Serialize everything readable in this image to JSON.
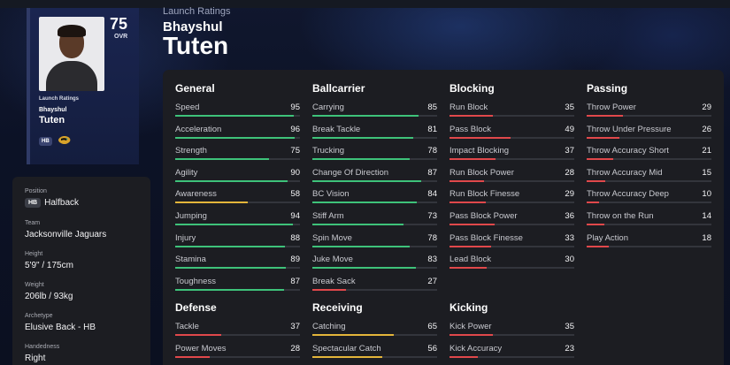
{
  "colors": {
    "high": "#3ec27a",
    "mid": "#e3b53a",
    "low": "#e0484b"
  },
  "card": {
    "ovr": "75",
    "ovr_label": "OVR",
    "launch_label": "Launch Ratings",
    "first_name": "Bhayshul",
    "last_name": "Tuten",
    "position": "HB"
  },
  "header": {
    "launch_label": "Launch Ratings",
    "first_name": "Bhayshul",
    "last_name": "Tuten"
  },
  "info": {
    "position_label": "Position",
    "position_badge": "HB",
    "position_value": "Halfback",
    "team_label": "Team",
    "team_value": "Jacksonville Jaguars",
    "height_label": "Height",
    "height_value": "5'9\" / 175cm",
    "weight_label": "Weight",
    "weight_value": "206lb / 93kg",
    "archetype_label": "Archetype",
    "archetype_value": "Elusive Back - HB",
    "handedness_label": "Handedness",
    "handedness_value": "Right"
  },
  "groups": [
    {
      "title": "General",
      "ratings": [
        {
          "name": "Speed",
          "value": 95
        },
        {
          "name": "Acceleration",
          "value": 96
        },
        {
          "name": "Strength",
          "value": 75
        },
        {
          "name": "Agility",
          "value": 90
        },
        {
          "name": "Awareness",
          "value": 58
        },
        {
          "name": "Jumping",
          "value": 94
        },
        {
          "name": "Injury",
          "value": 88
        },
        {
          "name": "Stamina",
          "value": 89
        },
        {
          "name": "Toughness",
          "value": 87
        }
      ]
    },
    {
      "title": "Ballcarrier",
      "ratings": [
        {
          "name": "Carrying",
          "value": 85
        },
        {
          "name": "Break Tackle",
          "value": 81
        },
        {
          "name": "Trucking",
          "value": 78
        },
        {
          "name": "Change Of Direction",
          "value": 87
        },
        {
          "name": "BC Vision",
          "value": 84
        },
        {
          "name": "Stiff Arm",
          "value": 73
        },
        {
          "name": "Spin Move",
          "value": 78
        },
        {
          "name": "Juke Move",
          "value": 83
        },
        {
          "name": "Break Sack",
          "value": 27
        }
      ]
    },
    {
      "title": "Blocking",
      "ratings": [
        {
          "name": "Run Block",
          "value": 35
        },
        {
          "name": "Pass Block",
          "value": 49
        },
        {
          "name": "Impact Blocking",
          "value": 37
        },
        {
          "name": "Run Block Power",
          "value": 28
        },
        {
          "name": "Run Block Finesse",
          "value": 29
        },
        {
          "name": "Pass Block Power",
          "value": 36
        },
        {
          "name": "Pass Block Finesse",
          "value": 33
        },
        {
          "name": "Lead Block",
          "value": 30
        }
      ]
    },
    {
      "title": "Passing",
      "ratings": [
        {
          "name": "Throw Power",
          "value": 29
        },
        {
          "name": "Throw Under Pressure",
          "value": 26
        },
        {
          "name": "Throw Accuracy Short",
          "value": 21
        },
        {
          "name": "Throw Accuracy Mid",
          "value": 15
        },
        {
          "name": "Throw Accuracy Deep",
          "value": 10
        },
        {
          "name": "Throw on the Run",
          "value": 14
        },
        {
          "name": "Play Action",
          "value": 18
        }
      ]
    },
    {
      "title": "Defense",
      "ratings": [
        {
          "name": "Tackle",
          "value": 37
        },
        {
          "name": "Power Moves",
          "value": 28
        }
      ]
    },
    {
      "title": "Receiving",
      "ratings": [
        {
          "name": "Catching",
          "value": 65
        },
        {
          "name": "Spectacular Catch",
          "value": 56
        }
      ]
    },
    {
      "title": "Kicking",
      "ratings": [
        {
          "name": "Kick Power",
          "value": 35
        },
        {
          "name": "Kick Accuracy",
          "value": 23
        }
      ]
    }
  ]
}
